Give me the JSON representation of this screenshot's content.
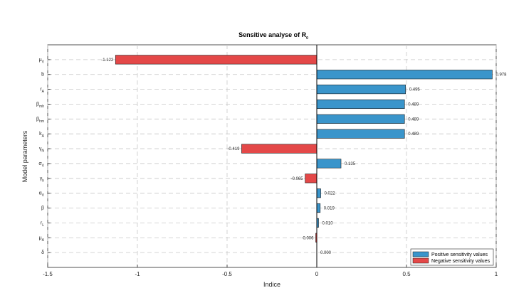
{
  "chart_data": {
    "type": "bar",
    "orientation": "horizontal",
    "title": {
      "base": "Sensitive analyse of R",
      "sub": "0"
    },
    "xlabel": "Indice",
    "ylabel": "Model parameters",
    "xlim": [
      -1.5,
      1.0
    ],
    "xticks": [
      -1.5,
      -1,
      -0.5,
      0,
      0.5,
      1
    ],
    "xtick_labels": [
      "-1.5",
      "-1",
      "-0.5",
      "0",
      "0.5",
      "1"
    ],
    "grid": true,
    "legend_position": "bottom-right",
    "parameters": [
      {
        "base": "μ",
        "sub": "V",
        "value": -1.122,
        "label": "-1.122"
      },
      {
        "base": "b",
        "sub": "",
        "value": 0.978,
        "label": "0.978"
      },
      {
        "base": "r",
        "sub": "A",
        "value": 0.495,
        "label": "0.495"
      },
      {
        "base": "β",
        "sub": "mh",
        "value": 0.489,
        "label": "0.489"
      },
      {
        "base": "β",
        "sub": "hm",
        "value": 0.489,
        "label": "0.489"
      },
      {
        "base": "k",
        "sub": "A",
        "value": 0.489,
        "label": "0.489"
      },
      {
        "base": "γ",
        "sub": "N",
        "value": -0.419,
        "label": "-0.419"
      },
      {
        "base": "σ",
        "sub": "V",
        "value": 0.135,
        "label": "0.135"
      },
      {
        "base": "γ",
        "sub": "h",
        "value": -0.065,
        "label": "-0.065"
      },
      {
        "base": "α",
        "sub": "V",
        "value": 0.022,
        "label": "0.022"
      },
      {
        "base": "β",
        "sub": "",
        "value": 0.019,
        "label": "0.019"
      },
      {
        "base": "r",
        "sub": "L",
        "value": 0.01,
        "label": "0.010"
      },
      {
        "base": "μ",
        "sub": "A",
        "value": -0.006,
        "label": "-0.006"
      },
      {
        "base": "δ",
        "sub": "",
        "value": 0.0,
        "label": "0.000"
      }
    ],
    "series": [
      {
        "name": "Positive sensitivity values",
        "color": "#3a95cb"
      },
      {
        "name": "Negative sensitivity values",
        "color": "#e44848"
      }
    ]
  }
}
